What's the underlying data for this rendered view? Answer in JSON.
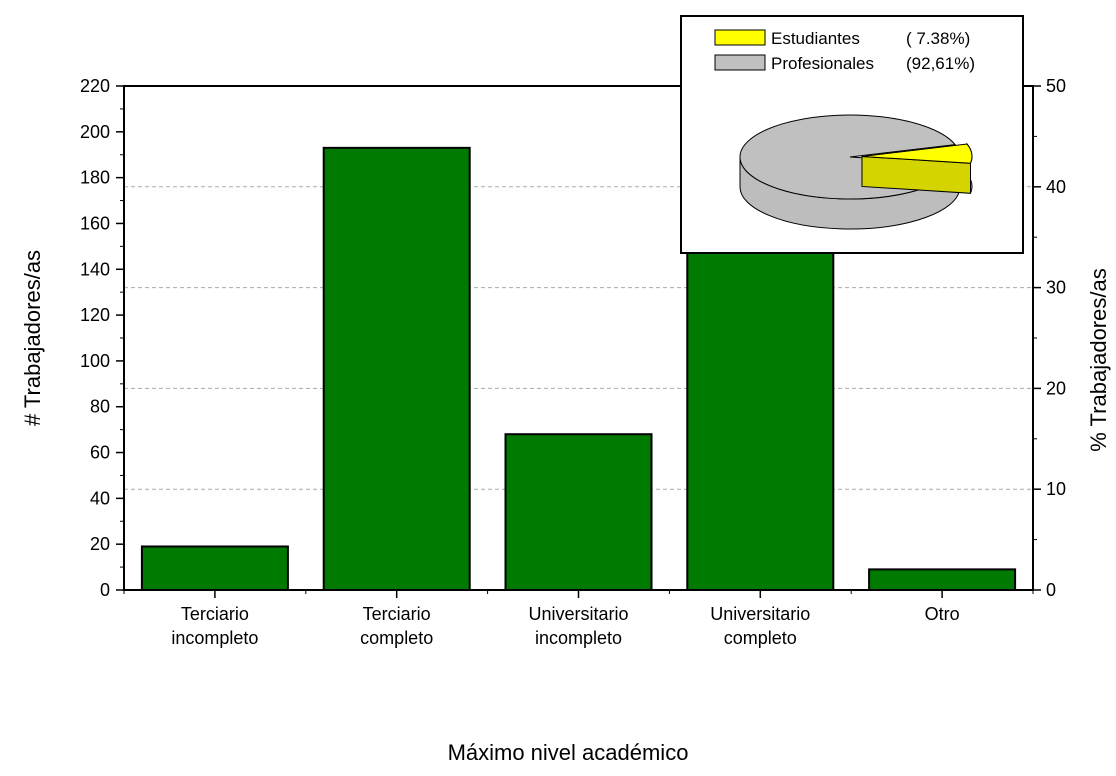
{
  "chart_data": [
    {
      "type": "bar",
      "categories": [
        [
          "Terciario",
          "incompleto"
        ],
        [
          "Terciario",
          "completo"
        ],
        [
          "Universitario",
          "incompleto"
        ],
        [
          "Universitario",
          "completo"
        ],
        [
          "Otro"
        ]
      ],
      "values": [
        19,
        193,
        68,
        154,
        9
      ],
      "xlabel": "Máximo nivel académico",
      "ylabel": "# Trabajadores/as",
      "ylim": [
        0,
        220
      ],
      "yticks": [
        0,
        20,
        40,
        60,
        80,
        100,
        120,
        140,
        160,
        180,
        200,
        220
      ],
      "y2label": "% Trabajadores/as",
      "y2lim": [
        0,
        50
      ],
      "y2ticks": [
        0,
        10,
        20,
        30,
        40,
        50
      ],
      "grid": "dashed horizontal lines at right-axis major ticks",
      "bar_color": "#007a00"
    },
    {
      "type": "pie",
      "labels": [
        "Estudiantes",
        "Profesionales"
      ],
      "legend_values": [
        "( 7.38%)",
        "(92,61%)"
      ],
      "values": [
        7.38,
        92.61
      ],
      "colors": [
        "#ffff00",
        "#c0c0c0"
      ],
      "legend_placement": "inset top-right"
    }
  ]
}
